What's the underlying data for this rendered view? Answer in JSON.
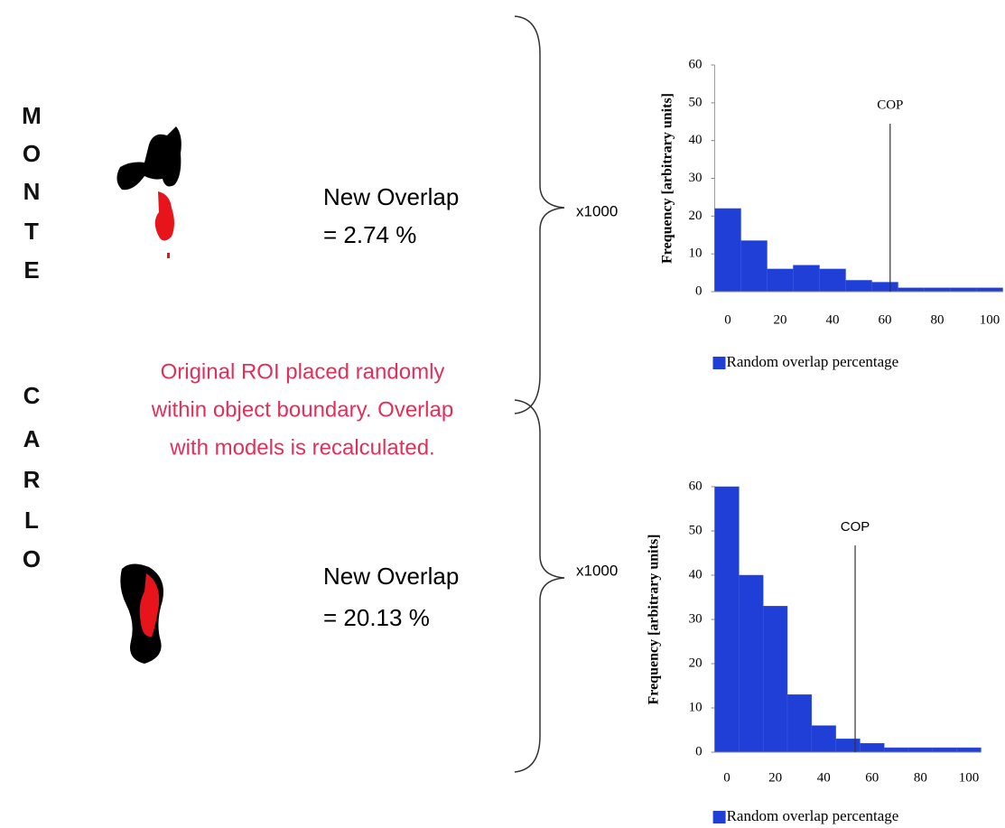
{
  "side_text": {
    "monte": [
      "M",
      "O",
      "N",
      "T",
      "E"
    ],
    "carlo": [
      "C",
      "A",
      "R",
      "L",
      "O"
    ]
  },
  "panels": [
    {
      "overlap_title": "New Overlap",
      "overlap_value": "= 2.74 %",
      "multiplier": "x1000"
    },
    {
      "overlap_title": "New Overlap",
      "overlap_value": "= 20.13 %",
      "multiplier": "x1000"
    }
  ],
  "note": [
    "Original ROI placed randomly",
    "within object boundary. Overlap",
    "with models is recalculated."
  ],
  "chart_data": [
    {
      "type": "histogram",
      "y_label": "Frequency [arbitrary units]",
      "bins": [
        -5,
        5,
        15,
        25,
        35,
        45,
        55,
        65,
        75,
        85,
        95,
        105
      ],
      "series": [
        {
          "name": "Random overlap percentage",
          "color": "#1f3fd6",
          "values": [
            22,
            13.5,
            6,
            7,
            6,
            3,
            2.5,
            1,
            1,
            1,
            1
          ]
        }
      ],
      "xlim": [
        -5,
        105
      ],
      "xticks": [
        0,
        20,
        40,
        60,
        80,
        100
      ],
      "ylim": [
        0,
        60
      ],
      "yticks": [
        0,
        10,
        20,
        30,
        40,
        50,
        60
      ],
      "annotations": [
        {
          "text": "COP",
          "x": 62
        }
      ]
    },
    {
      "type": "histogram",
      "y_label": "Frequency [arbitrary units]",
      "bins": [
        -5,
        5,
        15,
        25,
        35,
        45,
        55,
        65,
        75,
        85,
        95,
        105
      ],
      "series": [
        {
          "name": "Random overlap percentage",
          "color": "#1f3fd6",
          "values": [
            60,
            40,
            33,
            13,
            6,
            3,
            2,
            1,
            1,
            1,
            1
          ]
        }
      ],
      "xlim": [
        -5,
        105
      ],
      "xticks": [
        0,
        20,
        40,
        60,
        80,
        100
      ],
      "ylim": [
        0,
        60
      ],
      "yticks": [
        0,
        10,
        20,
        30,
        40,
        50,
        60
      ],
      "annotations": [
        {
          "text": "COP",
          "x": 53
        }
      ]
    }
  ]
}
